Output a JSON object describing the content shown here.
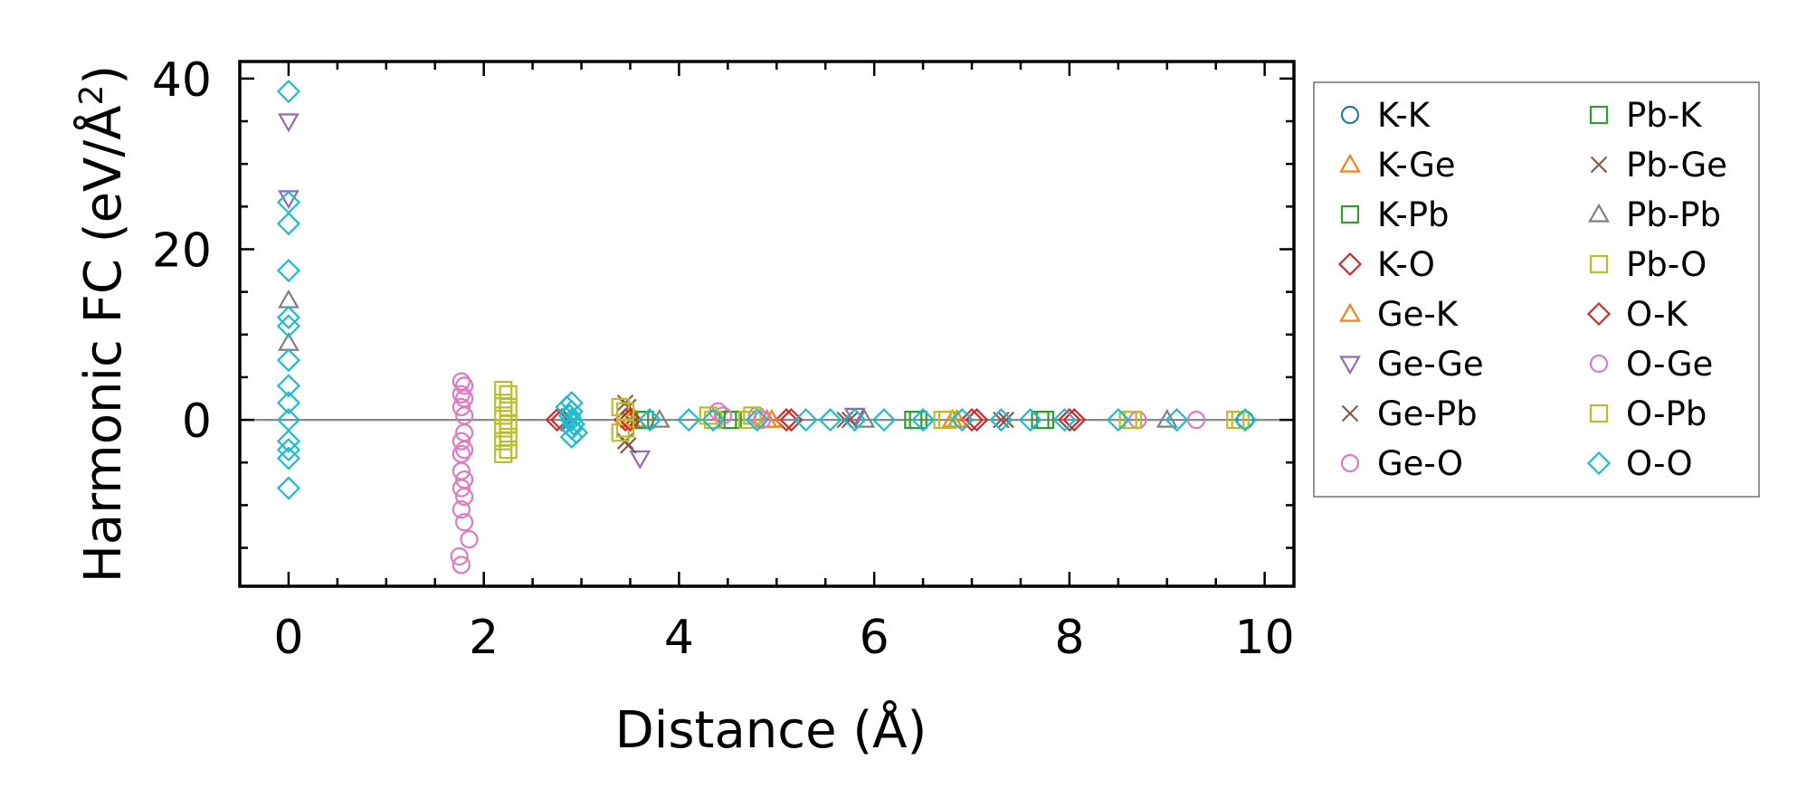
{
  "chart_data": {
    "type": "scatter",
    "xlabel": "Distance (Å)",
    "ylabel_main": "Harmonic FC (eV/Å",
    "ylabel_sup": "2",
    "ylabel_end": ")",
    "xlim": [
      -0.5,
      10.3
    ],
    "ylim": [
      -19.5,
      42
    ],
    "xticks": [
      0,
      2,
      4,
      6,
      8,
      10
    ],
    "xtick_labels": [
      "0",
      "2",
      "4",
      "6",
      "8",
      "10"
    ],
    "yticks": [
      0,
      20,
      40
    ],
    "ytick_labels": [
      "0",
      "20",
      "40"
    ],
    "legend_location": "outside-right",
    "series": [
      {
        "name": "K-K",
        "marker": "circle",
        "color": "#1f77b4",
        "points": [
          [
            9.8,
            0
          ]
        ]
      },
      {
        "name": "K-Ge",
        "marker": "triangle-up",
        "color": "#ff7f0e",
        "points": [
          [
            3.5,
            0
          ],
          [
            4.9,
            0
          ],
          [
            6.8,
            0
          ]
        ]
      },
      {
        "name": "K-Pb",
        "marker": "square",
        "color": "#2ca02c",
        "points": [
          [
            3.6,
            0
          ],
          [
            4.5,
            0
          ],
          [
            6.4,
            0
          ],
          [
            7.7,
            0
          ]
        ]
      },
      {
        "name": "K-O",
        "marker": "diamond",
        "color": "#d62728",
        "points": [
          [
            2.75,
            0
          ],
          [
            3.45,
            0
          ],
          [
            5.1,
            0
          ],
          [
            7.0,
            0
          ],
          [
            8.0,
            0
          ]
        ]
      },
      {
        "name": "Ge-K",
        "marker": "triangle-up",
        "color": "#ff7f0e",
        "points": [
          [
            3.55,
            0
          ],
          [
            4.95,
            0
          ],
          [
            6.85,
            0
          ]
        ]
      },
      {
        "name": "Ge-Ge",
        "marker": "triangle-down",
        "color": "#9467bd",
        "points": [
          [
            0,
            35
          ],
          [
            0,
            26
          ],
          [
            3.6,
            -4.5
          ],
          [
            5.8,
            0.5
          ]
        ]
      },
      {
        "name": "Ge-Pb",
        "marker": "x",
        "color": "#8c564b",
        "points": [
          [
            3.45,
            2
          ],
          [
            3.45,
            -2.5
          ],
          [
            3.5,
            0
          ],
          [
            5.7,
            0
          ],
          [
            7.3,
            0
          ]
        ]
      },
      {
        "name": "Ge-O",
        "marker": "circle",
        "color": "#e377c2",
        "points": [
          [
            1.77,
            4.5
          ],
          [
            1.77,
            3
          ],
          [
            1.77,
            1.5
          ],
          [
            1.77,
            -2.5
          ],
          [
            1.77,
            -4
          ],
          [
            1.77,
            -6
          ],
          [
            1.77,
            -8
          ],
          [
            1.77,
            -10.5
          ],
          [
            1.75,
            -16
          ],
          [
            1.85,
            -14
          ],
          [
            4.4,
            1
          ],
          [
            4.8,
            0.5
          ],
          [
            9.3,
            0
          ]
        ]
      },
      {
        "name": "Pb-K",
        "marker": "square",
        "color": "#2ca02c",
        "points": [
          [
            3.65,
            0
          ],
          [
            4.55,
            0
          ],
          [
            6.45,
            0
          ],
          [
            7.75,
            0
          ]
        ]
      },
      {
        "name": "Pb-Ge",
        "marker": "x",
        "color": "#8c564b",
        "points": [
          [
            3.48,
            1.5
          ],
          [
            3.48,
            -3
          ],
          [
            5.75,
            0
          ],
          [
            7.35,
            0
          ]
        ]
      },
      {
        "name": "Pb-Pb",
        "marker": "triangle-up",
        "color": "#7f7f7f",
        "points": [
          [
            0,
            14
          ],
          [
            0,
            9
          ],
          [
            3.8,
            0
          ],
          [
            5.9,
            0
          ],
          [
            9.0,
            0
          ]
        ]
      },
      {
        "name": "Pb-O",
        "marker": "square",
        "color": "#bcbd22",
        "points": [
          [
            2.2,
            3.5
          ],
          [
            2.2,
            2
          ],
          [
            2.2,
            0.5
          ],
          [
            2.2,
            -1
          ],
          [
            2.2,
            -2.5
          ],
          [
            2.2,
            -4
          ],
          [
            3.4,
            1.5
          ],
          [
            3.4,
            -1.5
          ],
          [
            4.3,
            0.5
          ],
          [
            4.7,
            0
          ],
          [
            6.7,
            0
          ],
          [
            8.6,
            0
          ],
          [
            9.7,
            0
          ]
        ]
      },
      {
        "name": "O-K",
        "marker": "diamond",
        "color": "#d62728",
        "points": [
          [
            2.8,
            0
          ],
          [
            3.5,
            0
          ],
          [
            5.15,
            0
          ],
          [
            7.05,
            0
          ],
          [
            8.05,
            0
          ]
        ]
      },
      {
        "name": "O-Ge",
        "marker": "circle",
        "color": "#e377c2",
        "points": [
          [
            1.8,
            4
          ],
          [
            1.8,
            2.5
          ],
          [
            1.8,
            0.5
          ],
          [
            1.8,
            -1.5
          ],
          [
            1.8,
            -3.5
          ],
          [
            1.8,
            -7
          ],
          [
            1.8,
            -9
          ],
          [
            1.8,
            -12
          ],
          [
            1.77,
            -17
          ],
          [
            4.45,
            0.5
          ],
          [
            4.85,
            0
          ],
          [
            8.7,
            0
          ]
        ]
      },
      {
        "name": "O-Pb",
        "marker": "square",
        "color": "#bcbd22",
        "points": [
          [
            2.25,
            3
          ],
          [
            2.25,
            1.5
          ],
          [
            2.25,
            -0.5
          ],
          [
            2.25,
            -2
          ],
          [
            2.25,
            -3.5
          ],
          [
            3.45,
            1
          ],
          [
            3.45,
            -1
          ],
          [
            4.35,
            0
          ],
          [
            4.75,
            0.5
          ],
          [
            6.75,
            0
          ],
          [
            8.65,
            0
          ],
          [
            9.75,
            0
          ]
        ]
      },
      {
        "name": "O-O",
        "marker": "diamond",
        "color": "#17becf",
        "points": [
          [
            0,
            38.5
          ],
          [
            0,
            25.5
          ],
          [
            0,
            23
          ],
          [
            0,
            17.5
          ],
          [
            0,
            12
          ],
          [
            0,
            11
          ],
          [
            0,
            7
          ],
          [
            0,
            4
          ],
          [
            0,
            2
          ],
          [
            0,
            0
          ],
          [
            0,
            -2.5
          ],
          [
            0,
            -3.5
          ],
          [
            0,
            -4.5
          ],
          [
            0,
            -8
          ],
          [
            2.9,
            2
          ],
          [
            2.9,
            1
          ],
          [
            2.9,
            0
          ],
          [
            2.9,
            -1
          ],
          [
            2.9,
            -2
          ],
          [
            2.85,
            1.5
          ],
          [
            2.95,
            -1.5
          ],
          [
            2.88,
            0.5
          ],
          [
            2.92,
            -0.5
          ],
          [
            3.7,
            0
          ],
          [
            4.1,
            0
          ],
          [
            4.35,
            0
          ],
          [
            4.8,
            0
          ],
          [
            5.3,
            0
          ],
          [
            5.55,
            0
          ],
          [
            5.8,
            0
          ],
          [
            6.1,
            0
          ],
          [
            6.5,
            0
          ],
          [
            6.9,
            0
          ],
          [
            7.3,
            0
          ],
          [
            7.6,
            0
          ],
          [
            7.95,
            0
          ],
          [
            8.5,
            0
          ],
          [
            9.1,
            0
          ],
          [
            9.8,
            0
          ]
        ]
      }
    ]
  }
}
